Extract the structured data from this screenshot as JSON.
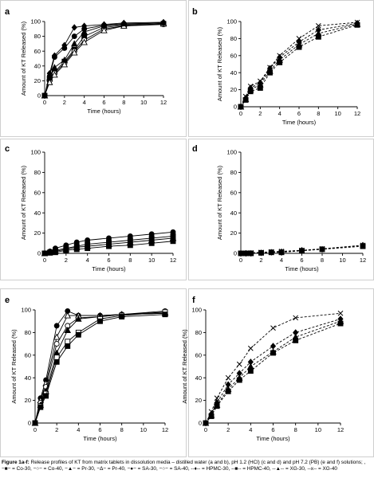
{
  "caption": {
    "figure_label": "Figure 1a-f:",
    "text": " Release profiles of KT from matrix tablets in dissolution media – distilled water (a and b), pH 1.2 (HCl) (c and d) and pH 7.2 (PB) (e and f) solutions; , −■− = Co-30, −○− = Co-40, −▲− = Pr-30, −Δ− = Pr-40, −●− = SA-30, −○− = SA-40, --♦-- = HPMC-30, --■-- = HPMC-40, --▲-- = XG-30, --x-- = XG-40"
  },
  "colors": {
    "series": "#000000",
    "frame": "#cfcfcf"
  },
  "chart_data": [
    {
      "panel": "a",
      "type": "line",
      "xlabel": "Time (hours)",
      "ylabel": "Amount of KT Released (%)",
      "xlim": [
        0,
        12
      ],
      "ylim": [
        0,
        100
      ],
      "xticks": [
        0,
        2,
        4,
        6,
        8,
        10,
        12
      ],
      "yticks": [
        0,
        20,
        40,
        60,
        80,
        100
      ],
      "x": [
        0,
        0.5,
        1,
        2,
        3,
        4,
        6,
        8,
        12
      ],
      "series": [
        {
          "marker": "square",
          "dashed": false,
          "values": [
            0,
            22,
            32,
            46,
            62,
            80,
            92,
            95,
            97
          ]
        },
        {
          "marker": "circle-open",
          "dashed": false,
          "values": [
            0,
            20,
            30,
            44,
            60,
            75,
            90,
            94,
            96
          ]
        },
        {
          "marker": "triangle",
          "dashed": false,
          "values": [
            0,
            24,
            38,
            48,
            70,
            86,
            94,
            96,
            98
          ]
        },
        {
          "marker": "triangle-open",
          "dashed": false,
          "values": [
            0,
            18,
            28,
            42,
            58,
            72,
            88,
            94,
            97
          ]
        },
        {
          "marker": "circle",
          "dashed": false,
          "values": [
            0,
            26,
            52,
            64,
            80,
            90,
            95,
            97,
            98
          ]
        },
        {
          "marker": "diamond",
          "dashed": false,
          "values": [
            0,
            30,
            54,
            68,
            92,
            94,
            96,
            98,
            99
          ]
        }
      ]
    },
    {
      "panel": "b",
      "type": "line",
      "xlabel": "Time (hours)",
      "ylabel": "Amount of KT Released (%)",
      "xlim": [
        0,
        12
      ],
      "ylim": [
        0,
        100
      ],
      "xticks": [
        0,
        2,
        4,
        6,
        8,
        10,
        12
      ],
      "yticks": [
        0,
        20,
        40,
        60,
        80,
        100
      ],
      "x": [
        0,
        0.5,
        1,
        2,
        3,
        4,
        6,
        8,
        12
      ],
      "series": [
        {
          "marker": "diamond",
          "dashed": true,
          "values": [
            0,
            10,
            22,
            28,
            45,
            58,
            76,
            90,
            98
          ]
        },
        {
          "marker": "square",
          "dashed": true,
          "values": [
            0,
            8,
            18,
            22,
            40,
            52,
            70,
            82,
            96
          ]
        },
        {
          "marker": "triangle",
          "dashed": true,
          "values": [
            0,
            9,
            20,
            26,
            42,
            55,
            73,
            86,
            97
          ]
        },
        {
          "marker": "x",
          "dashed": true,
          "values": [
            0,
            12,
            24,
            30,
            46,
            60,
            80,
            95,
            99
          ]
        }
      ]
    },
    {
      "panel": "c",
      "type": "line",
      "xlabel": "Time (hours)",
      "ylabel": "Amount of KT Released (%)",
      "xlim": [
        0,
        12
      ],
      "ylim": [
        0,
        100
      ],
      "xticks": [
        0,
        2,
        4,
        6,
        8,
        10,
        12
      ],
      "yticks": [
        0,
        20,
        40,
        60,
        80,
        100
      ],
      "x": [
        0,
        0.5,
        1,
        2,
        3,
        4,
        6,
        8,
        10,
        12
      ],
      "series": [
        {
          "marker": "circle",
          "dashed": false,
          "values": [
            0,
            2,
            5,
            8,
            11,
            13,
            15,
            17,
            19,
            21
          ]
        },
        {
          "marker": "square",
          "dashed": false,
          "values": [
            0,
            1,
            3,
            5,
            7,
            9,
            11,
            13,
            15,
            17
          ]
        },
        {
          "marker": "triangle",
          "dashed": false,
          "values": [
            0,
            1,
            2,
            4,
            6,
            7,
            9,
            11,
            13,
            15
          ]
        },
        {
          "marker": "square",
          "dashed": false,
          "values": [
            0,
            0.5,
            1,
            3,
            4,
            5,
            7,
            8,
            10,
            12
          ]
        }
      ]
    },
    {
      "panel": "d",
      "type": "line",
      "xlabel": "Time (hours)",
      "ylabel": "Amount of KT Released (%)",
      "xlim": [
        0,
        12
      ],
      "ylim": [
        0,
        100
      ],
      "xticks": [
        0,
        2,
        4,
        6,
        8,
        10,
        12
      ],
      "yticks": [
        0,
        20,
        40,
        60,
        80,
        100
      ],
      "x": [
        0,
        0.5,
        1,
        2,
        3,
        4,
        6,
        8,
        12
      ],
      "series": [
        {
          "marker": "diamond",
          "dashed": true,
          "values": [
            0,
            0,
            0,
            0.5,
            1,
            1.5,
            3,
            4,
            8
          ]
        },
        {
          "marker": "square",
          "dashed": true,
          "values": [
            0,
            0,
            0,
            0.5,
            1,
            1,
            2.5,
            4,
            7
          ]
        },
        {
          "marker": "x",
          "dashed": true,
          "values": [
            0,
            0,
            0.5,
            1,
            1.5,
            2,
            3,
            4.5,
            8
          ]
        }
      ]
    },
    {
      "panel": "e",
      "type": "line",
      "xlabel": "Time (hours)",
      "ylabel": "Amount of KT Released (%)",
      "xlim": [
        0,
        12
      ],
      "ylim": [
        0,
        100
      ],
      "xticks": [
        0,
        2,
        4,
        6,
        8,
        10,
        12
      ],
      "yticks": [
        0,
        20,
        40,
        60,
        80,
        100
      ],
      "x": [
        0,
        0.5,
        1,
        2,
        3,
        4,
        6,
        8,
        12
      ],
      "series": [
        {
          "marker": "circle",
          "dashed": false,
          "values": [
            0,
            22,
            38,
            86,
            99,
            95,
            95,
            96,
            97
          ]
        },
        {
          "marker": "triangle-open",
          "dashed": false,
          "values": [
            0,
            20,
            35,
            76,
            95,
            95,
            95,
            96,
            97
          ]
        },
        {
          "marker": "circle-open",
          "dashed": false,
          "values": [
            0,
            18,
            32,
            70,
            86,
            93,
            94,
            96,
            99
          ]
        },
        {
          "marker": "triangle",
          "dashed": false,
          "values": [
            0,
            16,
            28,
            62,
            82,
            92,
            94,
            96,
            98
          ]
        },
        {
          "marker": "square-open",
          "dashed": false,
          "values": [
            0,
            15,
            26,
            58,
            72,
            80,
            92,
            95,
            98
          ]
        },
        {
          "marker": "square",
          "dashed": false,
          "values": [
            0,
            14,
            24,
            54,
            68,
            78,
            90,
            94,
            96
          ]
        }
      ]
    },
    {
      "panel": "f",
      "type": "line",
      "xlabel": "Time (hours)",
      "ylabel": "Amount of KT Released (%)",
      "xlim": [
        0,
        12
      ],
      "ylim": [
        0,
        100
      ],
      "xticks": [
        0,
        2,
        4,
        6,
        8,
        10,
        12
      ],
      "yticks": [
        0,
        20,
        40,
        60,
        80,
        100
      ],
      "x": [
        0,
        0.5,
        1,
        2,
        3,
        4,
        6,
        8,
        12
      ],
      "series": [
        {
          "marker": "x",
          "dashed": true,
          "values": [
            0,
            10,
            22,
            40,
            52,
            66,
            84,
            93,
            97
          ]
        },
        {
          "marker": "diamond",
          "dashed": true,
          "values": [
            0,
            8,
            18,
            34,
            44,
            54,
            68,
            80,
            92
          ]
        },
        {
          "marker": "triangle",
          "dashed": true,
          "values": [
            0,
            7,
            16,
            30,
            40,
            50,
            63,
            76,
            90
          ]
        },
        {
          "marker": "square",
          "dashed": true,
          "values": [
            0,
            6,
            15,
            28,
            38,
            46,
            62,
            73,
            88
          ]
        }
      ]
    }
  ]
}
